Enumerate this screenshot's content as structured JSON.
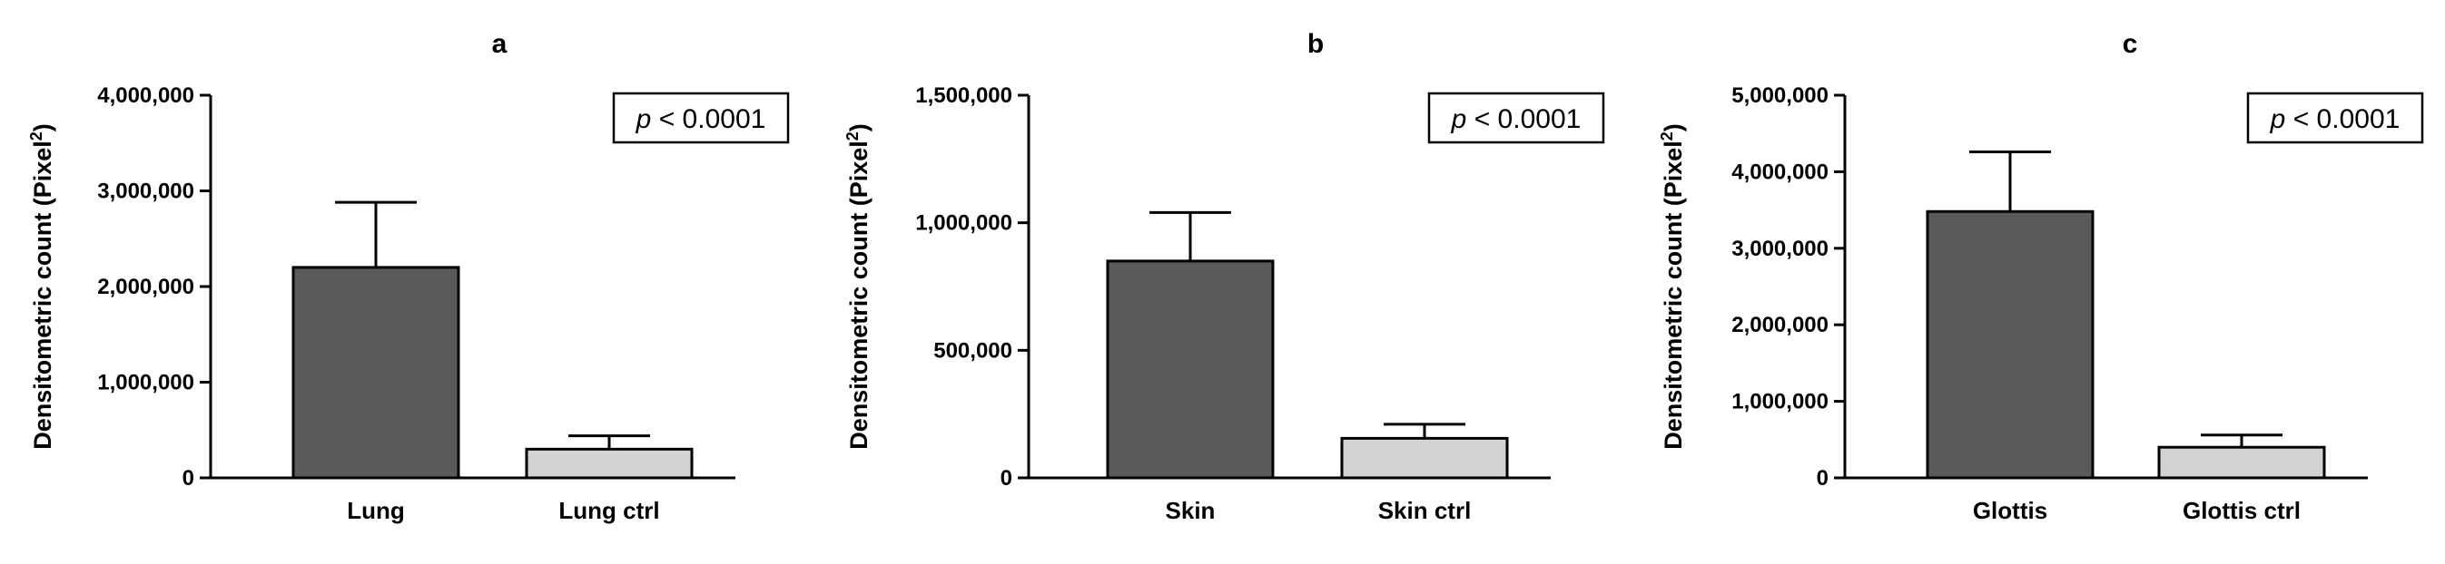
{
  "colors": {
    "bar_dark": "#5a5a5a",
    "bar_light": "#d3d3d3",
    "axis": "#000000"
  },
  "chart_data": [
    {
      "type": "bar",
      "title": "a",
      "ylabel": "Densitometric count (Pixel²)",
      "ylabel_main": "Densitometric count (Pixel",
      "ylabel_sup": "2",
      "ylabel_close": ")",
      "categories": [
        "Lung",
        "Lung ctrl"
      ],
      "values": [
        2200000,
        300000
      ],
      "errors": [
        680000,
        140000
      ],
      "ylim": [
        0,
        4000000
      ],
      "yticks": [
        0,
        1000000,
        2000000,
        3000000,
        4000000
      ],
      "ytick_labels": [
        "0",
        "1,000,000",
        "2,000,000",
        "3,000,000",
        "4,000,000"
      ],
      "annotation_italic": "p",
      "annotation_rest": " < 0.0001",
      "annotation_position": "top-right"
    },
    {
      "type": "bar",
      "title": "b",
      "ylabel": "Densitometric count (Pixel²)",
      "ylabel_main": "Densitometric count (Pixel",
      "ylabel_sup": "2",
      "ylabel_close": ")",
      "categories": [
        "Skin",
        "Skin ctrl"
      ],
      "values": [
        850000,
        155000
      ],
      "errors": [
        190000,
        55000
      ],
      "ylim": [
        0,
        1500000
      ],
      "yticks": [
        0,
        500000,
        1000000,
        1500000
      ],
      "ytick_labels": [
        "0",
        "500,000",
        "1,000,000",
        "1,500,000"
      ],
      "annotation_italic": "p",
      "annotation_rest": " < 0.0001",
      "annotation_position": "top-right"
    },
    {
      "type": "bar",
      "title": "c",
      "ylabel": "Densitometric count (Pixel²)",
      "ylabel_main": "Densitometric count (Pixel",
      "ylabel_sup": "2",
      "ylabel_close": ")",
      "categories": [
        "Glottis",
        "Glottis ctrl"
      ],
      "values": [
        3480000,
        400000
      ],
      "errors": [
        780000,
        160000
      ],
      "ylim": [
        0,
        5000000
      ],
      "yticks": [
        0,
        1000000,
        2000000,
        3000000,
        4000000,
        5000000
      ],
      "ytick_labels": [
        "0",
        "1,000,000",
        "2,000,000",
        "3,000,000",
        "4,000,000",
        "5,000,000"
      ],
      "annotation_italic": "p",
      "annotation_rest": " < 0.0001",
      "annotation_position": "top-right"
    }
  ]
}
